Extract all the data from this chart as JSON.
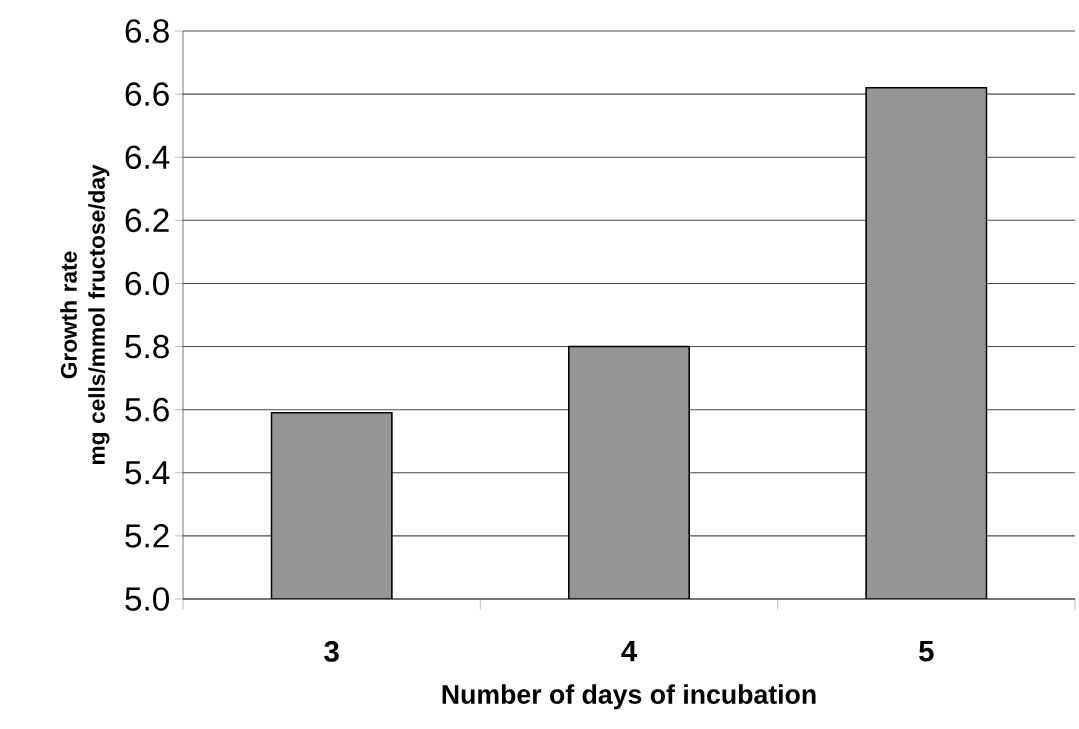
{
  "chart_data": {
    "type": "bar",
    "xlabel": "Number of days of incubation",
    "ylabel": "Growth rate\nmg cells/mmol fructose/day",
    "categories": [
      "3",
      "4",
      "5"
    ],
    "values": [
      5.59,
      5.8,
      6.62
    ],
    "color": "#969696",
    "ylim": [
      5.0,
      6.8
    ],
    "yticks": [
      {
        "value": 5.0,
        "label": "5.0"
      },
      {
        "value": 5.2,
        "label": "5.2"
      },
      {
        "value": 5.4,
        "label": "5.4"
      },
      {
        "value": 5.6,
        "label": "5.6"
      },
      {
        "value": 5.8,
        "label": "5.8"
      },
      {
        "value": 6.0,
        "label": "6.0"
      },
      {
        "value": 6.2,
        "label": "6.2"
      },
      {
        "value": 6.4,
        "label": "6.4"
      },
      {
        "value": 6.6,
        "label": "6.6"
      },
      {
        "value": 6.8,
        "label": "6.8"
      }
    ],
    "grid": "y"
  }
}
